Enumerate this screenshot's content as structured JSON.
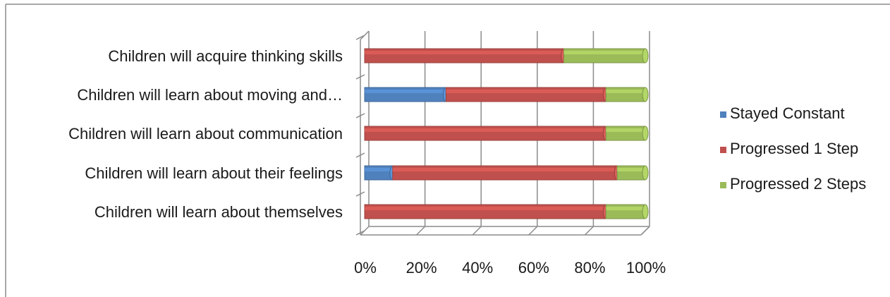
{
  "chart_data": {
    "type": "bar",
    "orientation": "horizontal",
    "stacked": "percent",
    "categories": [
      "Children will learn about themselves",
      "Children will learn about their feelings",
      "Children will learn about communication",
      "Children will learn about moving and…",
      "Children will acquire thinking skills"
    ],
    "series": [
      {
        "name": "Stayed Constant",
        "color": "#4f81bd",
        "values": [
          0,
          10,
          0,
          29,
          0
        ]
      },
      {
        "name": "Progressed 1 Step",
        "color": "#c0504d",
        "values": [
          86,
          80,
          86,
          57,
          71
        ]
      },
      {
        "name": "Progressed 2 Steps",
        "color": "#9bbb59",
        "values": [
          14,
          10,
          14,
          14,
          29
        ]
      }
    ],
    "xticks": [
      "0%",
      "20%",
      "40%",
      "60%",
      "80%",
      "100%"
    ],
    "xlim": [
      0,
      100
    ],
    "legend_position": "right",
    "grid": true
  }
}
